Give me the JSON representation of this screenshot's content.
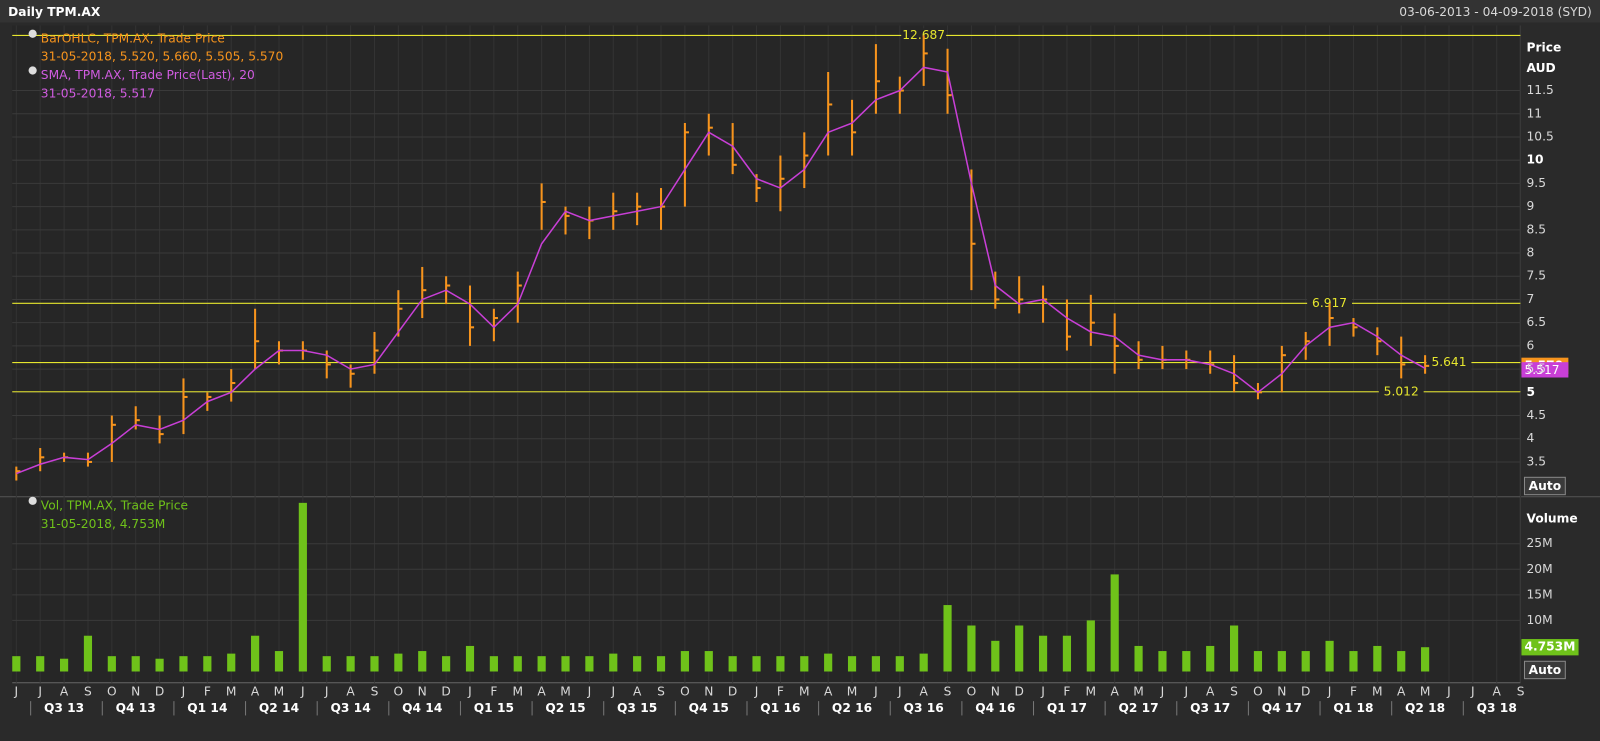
{
  "header": {
    "title": "Daily TPM.AX",
    "range": "03-06-2013 - 04-09-2018 (SYD)"
  },
  "chart_data": [
    {
      "type": "ohlc",
      "axis_title": [
        "Price",
        "AUD"
      ],
      "auto_button": "Auto",
      "categories": [
        "J",
        "J",
        "A",
        "S",
        "O",
        "N",
        "D",
        "J",
        "F",
        "M",
        "A",
        "M",
        "J",
        "J",
        "A",
        "S",
        "O",
        "N",
        "D",
        "J",
        "F",
        "M",
        "A",
        "M",
        "J",
        "J",
        "A",
        "S",
        "O",
        "N",
        "D",
        "J",
        "F",
        "M",
        "A",
        "M",
        "J",
        "J",
        "A",
        "S",
        "O",
        "N",
        "D",
        "J",
        "F",
        "M",
        "A",
        "M",
        "J",
        "J",
        "A",
        "S",
        "O",
        "N",
        "D",
        "J",
        "F",
        "M",
        "A",
        "M",
        "J",
        "J",
        "A",
        "S"
      ],
      "quarters": [
        "Q3 13",
        "Q4 13",
        "Q1 14",
        "Q2 14",
        "Q3 14",
        "Q4 14",
        "Q1 15",
        "Q2 15",
        "Q3 15",
        "Q4 15",
        "Q1 16",
        "Q2 16",
        "Q3 16",
        "Q4 16",
        "Q1 17",
        "Q2 17",
        "Q3 17",
        "Q4 17",
        "Q1 18",
        "Q2 18",
        "Q3 18"
      ],
      "ylim": [
        2.773,
        12.9
      ],
      "yticks": [
        3.5,
        4,
        4.5,
        5,
        5.5,
        6,
        6.5,
        7,
        7.5,
        8,
        8.5,
        9,
        9.5,
        10,
        10.5,
        11,
        11.5
      ],
      "bold_ticks": [
        5,
        10
      ],
      "grid": true,
      "series": [
        {
          "name": "BarOHLC, TPM.AX, Trade Price",
          "detail": "31-05-2018, 5.520, 5.660, 5.505, 5.570",
          "color": "#f7941d",
          "high": [
            3.4,
            3.8,
            3.7,
            3.7,
            4.5,
            4.7,
            4.5,
            5.3,
            5.0,
            5.5,
            6.8,
            6.1,
            6.1,
            5.9,
            5.6,
            6.3,
            7.2,
            7.7,
            7.5,
            7.3,
            6.8,
            7.6,
            9.5,
            9.0,
            9.0,
            9.3,
            9.3,
            9.4,
            10.8,
            11.0,
            10.8,
            9.7,
            10.1,
            10.6,
            11.9,
            11.3,
            12.5,
            11.8,
            12.69,
            12.4,
            9.8,
            7.6,
            7.5,
            7.3,
            7.0,
            7.1,
            6.7,
            6.1,
            6.0,
            5.9,
            5.9,
            5.8,
            5.2,
            6.0,
            6.3,
            6.92,
            6.6,
            6.4,
            6.2,
            5.8,
            null,
            null,
            null,
            null
          ],
          "low": [
            3.1,
            3.3,
            3.5,
            3.4,
            3.5,
            4.2,
            3.9,
            4.1,
            4.6,
            4.8,
            5.5,
            5.6,
            5.7,
            5.3,
            5.1,
            5.4,
            6.2,
            6.6,
            6.9,
            6.0,
            6.1,
            6.5,
            8.5,
            8.4,
            8.3,
            8.5,
            8.6,
            8.5,
            9.0,
            10.1,
            9.7,
            9.1,
            8.9,
            9.4,
            10.1,
            10.1,
            11.0,
            11.0,
            11.6,
            11.0,
            7.2,
            6.8,
            6.7,
            6.5,
            5.9,
            6.0,
            5.4,
            5.5,
            5.5,
            5.5,
            5.4,
            5.0,
            4.85,
            5.0,
            5.7,
            6.0,
            6.2,
            5.8,
            5.3,
            5.4,
            null,
            null,
            null,
            null
          ],
          "close": [
            3.3,
            3.6,
            3.6,
            3.5,
            4.3,
            4.4,
            4.1,
            4.9,
            4.9,
            5.2,
            6.1,
            5.9,
            5.9,
            5.6,
            5.4,
            5.9,
            6.8,
            7.2,
            7.3,
            6.4,
            6.6,
            7.3,
            9.1,
            8.8,
            8.7,
            8.9,
            9.0,
            9.0,
            10.6,
            10.7,
            9.9,
            9.4,
            9.6,
            10.1,
            11.2,
            10.6,
            11.7,
            11.5,
            12.3,
            11.4,
            8.2,
            7.0,
            7.0,
            7.0,
            6.2,
            6.5,
            6.0,
            5.7,
            5.7,
            5.7,
            5.6,
            5.2,
            5.0,
            5.8,
            6.1,
            6.6,
            6.4,
            6.1,
            5.6,
            5.57,
            null,
            null,
            null,
            null
          ],
          "last": {
            "value": 5.57,
            "label": "5.570"
          }
        },
        {
          "name": "SMA, TPM.AX, Trade Price(Last),  20",
          "detail": "31-05-2018, 5.517",
          "color": "#c83fd6",
          "values": [
            3.25,
            3.45,
            3.6,
            3.55,
            3.9,
            4.3,
            4.2,
            4.4,
            4.8,
            5.0,
            5.5,
            5.9,
            5.9,
            5.8,
            5.5,
            5.6,
            6.3,
            7.0,
            7.2,
            6.9,
            6.4,
            6.9,
            8.2,
            8.9,
            8.7,
            8.8,
            8.9,
            9.0,
            9.8,
            10.6,
            10.3,
            9.6,
            9.4,
            9.8,
            10.6,
            10.8,
            11.3,
            11.5,
            12.0,
            11.9,
            9.5,
            7.3,
            6.9,
            7.0,
            6.6,
            6.3,
            6.2,
            5.8,
            5.7,
            5.7,
            5.6,
            5.4,
            5.0,
            5.4,
            6.0,
            6.4,
            6.5,
            6.2,
            5.8,
            5.517,
            null,
            null,
            null,
            null
          ],
          "last": 5.517
        }
      ],
      "reference_lines": [
        {
          "value": 12.687,
          "at": 38
        },
        {
          "value": 6.917,
          "at": 55
        },
        {
          "value": 5.641,
          "at": 60
        },
        {
          "value": 5.012,
          "at": 58
        }
      ],
      "reference_color": "#e6e62e"
    },
    {
      "type": "bar",
      "axis_title": "Volume",
      "auto_button": "Auto",
      "name": "Vol, TPM.AX, Trade Price",
      "detail": "31-05-2018, 4.753M",
      "color": "#6fc21a",
      "ylim": [
        -2.2,
        34
      ],
      "yticks": [
        {
          "value": 10,
          "label": "10M"
        },
        {
          "value": 15,
          "label": "15M"
        },
        {
          "value": 20,
          "label": "20M"
        },
        {
          "value": 25,
          "label": "25M"
        }
      ],
      "values": [
        3,
        3,
        2.5,
        7,
        3,
        3,
        2.5,
        3,
        3,
        3.5,
        7,
        4,
        33,
        3,
        3,
        3,
        3.5,
        4,
        3,
        5,
        3,
        3,
        3,
        3,
        3,
        3.5,
        3,
        3,
        4,
        4,
        3,
        3,
        3,
        3,
        3.5,
        3,
        3,
        3,
        3.5,
        13,
        9,
        6,
        9,
        7,
        7,
        10,
        19,
        5,
        4,
        4,
        5,
        9,
        4,
        4,
        4,
        6,
        4,
        5,
        4,
        4.753,
        null,
        null,
        null,
        null
      ],
      "last": {
        "value": 4.753,
        "label": "4.753M"
      }
    }
  ]
}
